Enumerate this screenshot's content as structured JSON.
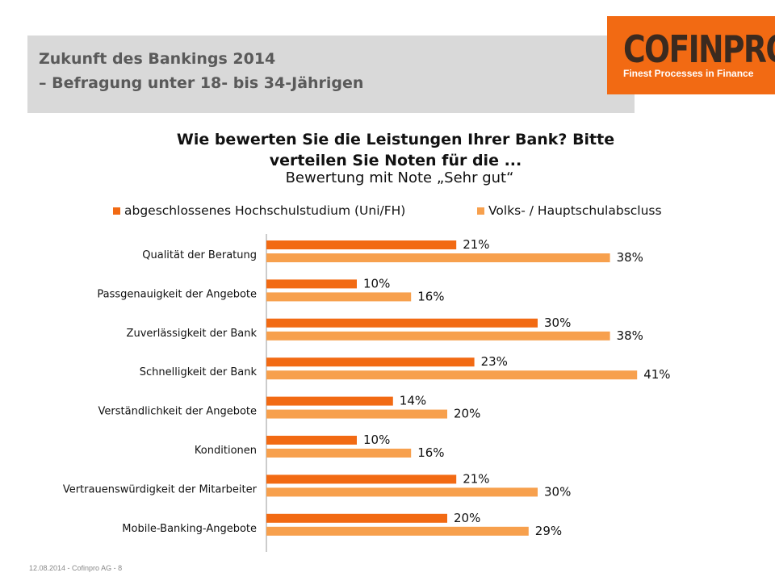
{
  "header": {
    "line1": "Zukunft des Bankings 2014",
    "line2": "– Befragung unter 18- bis 34-Jährigen"
  },
  "logo": {
    "name": "COFINPRO",
    "tagline": "Finest Processes in Finance"
  },
  "chart_data": {
    "type": "bar",
    "orientation": "horizontal",
    "title_lines": [
      "Wie bewerten Sie die Leistungen Ihrer Bank? Bitte",
      "verteilen Sie Noten für die ..."
    ],
    "subtitle": "Bewertung mit Note „Sehr gut“",
    "categories": [
      "Qualität der Beratung",
      "Passgenauigkeit der Angebote",
      "Zuverlässigkeit der Bank",
      "Schnelligkeit der Bank",
      "Verständlichkeit der Angebote",
      "Konditionen",
      "Vertrauenswürdigkeit der Mitarbeiter",
      "Mobile-Banking-Angebote"
    ],
    "series": [
      {
        "name": "abgeschlossenes Hochschulstudium (Uni/FH)",
        "color": "#f26a13",
        "values": [
          21,
          10,
          30,
          23,
          14,
          10,
          21,
          20
        ],
        "labels": [
          "21%",
          "10%",
          "30%",
          "23%",
          "14%",
          "10%",
          "21%",
          "20%"
        ]
      },
      {
        "name": "Volks- / Hauptschulabsclu​ss",
        "color": "#f7a04d",
        "values": [
          38,
          16,
          38,
          41,
          20,
          16,
          30,
          29
        ],
        "labels": [
          "38%",
          "16%",
          "38%",
          "41%",
          "20%",
          "16%",
          "30%",
          "29%"
        ]
      }
    ],
    "xlim": [
      0,
      50
    ],
    "legend_position": "top",
    "grid": false
  },
  "footer": {
    "text": "12.08.2014  - Cofinpro AG -     8"
  }
}
